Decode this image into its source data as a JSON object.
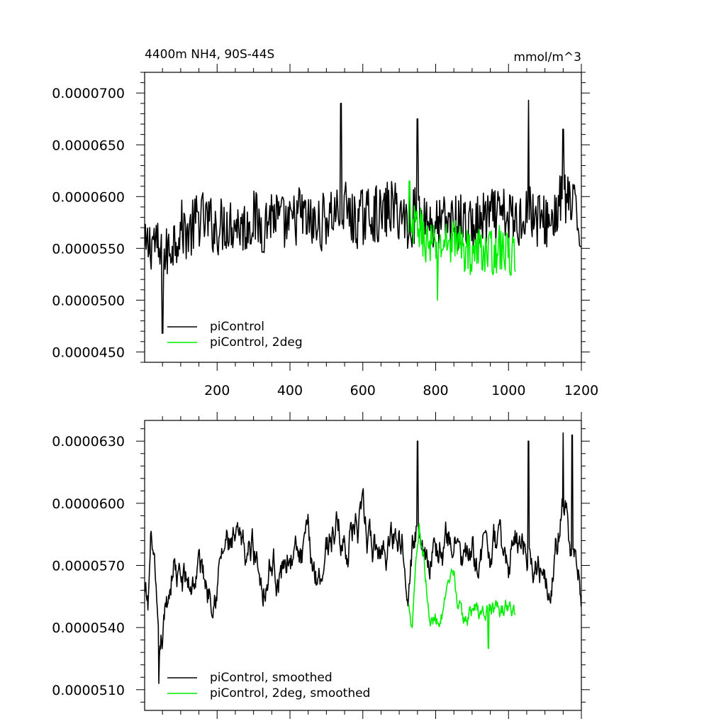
{
  "figure": {
    "title_left": "4400m NH4, 90S-44S",
    "title_right": "mmol/m^3"
  },
  "chart_data": [
    {
      "type": "line",
      "xlim": [
        1,
        1200
      ],
      "ylim": [
        4.4e-05,
        7.2e-05
      ],
      "x_ticks": [
        200,
        400,
        600,
        800,
        1000,
        1200
      ],
      "x_tick_labels": [
        "200",
        "400",
        "600",
        "800",
        "1000",
        "1200"
      ],
      "y_ticks": [
        4.5e-05,
        5e-05,
        5.5e-05,
        6e-05,
        6.5e-05,
        7e-05
      ],
      "y_tick_labels": [
        "0.0000450",
        "0.0000500",
        "0.0000550",
        "0.0000600",
        "0.0000650",
        "0.0000700"
      ],
      "grid": false,
      "legend_position": "bottom-left",
      "series": [
        {
          "name": "piControl",
          "color": "#000000",
          "x": [
            1,
            25,
            50,
            75,
            100,
            125,
            150,
            175,
            200,
            225,
            250,
            275,
            300,
            325,
            350,
            375,
            400,
            425,
            450,
            475,
            500,
            525,
            550,
            575,
            600,
            625,
            650,
            675,
            700,
            725,
            750,
            775,
            800,
            825,
            850,
            875,
            900,
            925,
            950,
            975,
            1000,
            1025,
            1050,
            1075,
            1100,
            1125,
            1150,
            1175,
            1200
          ],
          "y": [
            5.45e-05,
            5.6e-05,
            5.35e-05,
            5.55e-05,
            5.7e-05,
            5.65e-05,
            5.8e-05,
            5.75e-05,
            5.7e-05,
            5.75e-05,
            5.75e-05,
            5.7e-05,
            5.8e-05,
            5.7e-05,
            5.85e-05,
            5.75e-05,
            5.7e-05,
            5.85e-05,
            5.75e-05,
            5.7e-05,
            5.8e-05,
            5.85e-05,
            5.9e-05,
            5.75e-05,
            5.8e-05,
            5.85e-05,
            5.8e-05,
            5.9e-05,
            5.85e-05,
            5.75e-05,
            5.85e-05,
            5.8e-05,
            5.7e-05,
            5.75e-05,
            5.75e-05,
            5.75e-05,
            5.7e-05,
            5.75e-05,
            5.8e-05,
            5.8e-05,
            5.8e-05,
            5.75e-05,
            5.9e-05,
            5.8e-05,
            5.75e-05,
            5.8e-05,
            6e-05,
            5.9e-05,
            5.65e-05
          ],
          "noise": 2.8e-06,
          "min_point": {
            "x": 50,
            "y": 4.68e-05
          },
          "peak_points": [
            {
              "x": 540,
              "y": 6.9e-05
            },
            {
              "x": 750,
              "y": 6.75e-05
            },
            {
              "x": 1055,
              "y": 6.93e-05
            },
            {
              "x": 1150,
              "y": 6.65e-05
            }
          ]
        },
        {
          "name": "piControl, 2deg",
          "color": "#00ee00",
          "x": [
            725,
            750,
            775,
            800,
            825,
            850,
            875,
            900,
            925,
            950,
            975,
            1000,
            1020
          ],
          "y": [
            5.6e-05,
            5.75e-05,
            5.55e-05,
            5.5e-05,
            5.55e-05,
            5.6e-05,
            5.5e-05,
            5.45e-05,
            5.5e-05,
            5.45e-05,
            5.5e-05,
            5.45e-05,
            5.4e-05
          ],
          "noise": 2.2e-06,
          "min_point": {
            "x": 805,
            "y": 5e-05
          },
          "peak_points": [
            {
              "x": 728,
              "y": 6.15e-05
            }
          ]
        }
      ]
    },
    {
      "type": "line",
      "xlim": [
        1,
        1200
      ],
      "ylim": [
        5e-05,
        6.4e-05
      ],
      "x_ticks": [
        200,
        400,
        600,
        800,
        1000,
        1200
      ],
      "y_ticks": [
        5.1e-05,
        5.4e-05,
        5.7e-05,
        6e-05,
        6.3e-05
      ],
      "y_tick_labels": [
        "0.0000510",
        "0.0000540",
        "0.0000570",
        "0.0000600",
        "0.0000630"
      ],
      "grid": false,
      "legend_position": "bottom-left",
      "series": [
        {
          "name": "piControl, smoothed",
          "color": "#000000",
          "x": [
            1,
            10,
            20,
            30,
            40,
            50,
            60,
            70,
            80,
            90,
            100,
            125,
            150,
            175,
            200,
            225,
            250,
            275,
            300,
            325,
            350,
            375,
            400,
            425,
            450,
            475,
            500,
            525,
            550,
            575,
            600,
            625,
            650,
            675,
            700,
            725,
            750,
            775,
            800,
            825,
            850,
            875,
            900,
            925,
            950,
            975,
            1000,
            1025,
            1050,
            1075,
            1100,
            1125,
            1150,
            1175,
            1200
          ],
          "y": [
            5.55e-05,
            5.45e-05,
            5.85e-05,
            5.55e-05,
            5.13e-05,
            5.3e-05,
            5.45e-05,
            5.6e-05,
            5.75e-05,
            5.65e-05,
            5.6e-05,
            5.6e-05,
            5.7e-05,
            5.6e-05,
            5.7e-05,
            5.8e-05,
            5.75e-05,
            5.7e-05,
            5.8e-05,
            5.65e-05,
            5.75e-05,
            5.65e-05,
            5.8e-05,
            5.7e-05,
            5.75e-05,
            5.65e-05,
            5.8e-05,
            5.9e-05,
            5.8e-05,
            5.9e-05,
            5.85e-05,
            5.75e-05,
            5.75e-05,
            5.85e-05,
            5.9e-05,
            5.75e-05,
            5.9e-05,
            5.8e-05,
            5.8e-05,
            5.75e-05,
            5.85e-05,
            5.7e-05,
            5.7e-05,
            5.75e-05,
            5.8e-05,
            5.75e-05,
            5.7e-05,
            5.85e-05,
            5.8e-05,
            5.75e-05,
            5.7e-05,
            5.75e-05,
            6e-05,
            5.7e-05,
            5.55e-05
          ],
          "noise": 1.8e-06,
          "min_point": {
            "x": 40,
            "y": 5.13e-05
          },
          "peak_points": [
            {
              "x": 1150,
              "y": 6.34e-05
            },
            {
              "x": 1175,
              "y": 6.33e-05
            },
            {
              "x": 1055,
              "y": 6.3e-05
            },
            {
              "x": 750,
              "y": 6.3e-05
            }
          ]
        },
        {
          "name": "piControl, 2deg, smoothed",
          "color": "#00ee00",
          "x": [
            725,
            735,
            745,
            755,
            765,
            775,
            785,
            800,
            825,
            850,
            875,
            900,
            925,
            950,
            975,
            1000,
            1020
          ],
          "y": [
            5.5e-05,
            5.45e-05,
            5.75e-05,
            5.9e-05,
            5.8e-05,
            5.6e-05,
            5.4e-05,
            5.45e-05,
            5.5e-05,
            5.6e-05,
            5.4e-05,
            5.5e-05,
            5.45e-05,
            5.5e-05,
            5.45e-05,
            5.5e-05,
            5.45e-05
          ],
          "noise": 9e-07,
          "min_point": {
            "x": 945,
            "y": 5.3e-05
          },
          "peak_points": [
            {
              "x": 755,
              "y": 5.9e-05
            }
          ]
        }
      ]
    }
  ]
}
